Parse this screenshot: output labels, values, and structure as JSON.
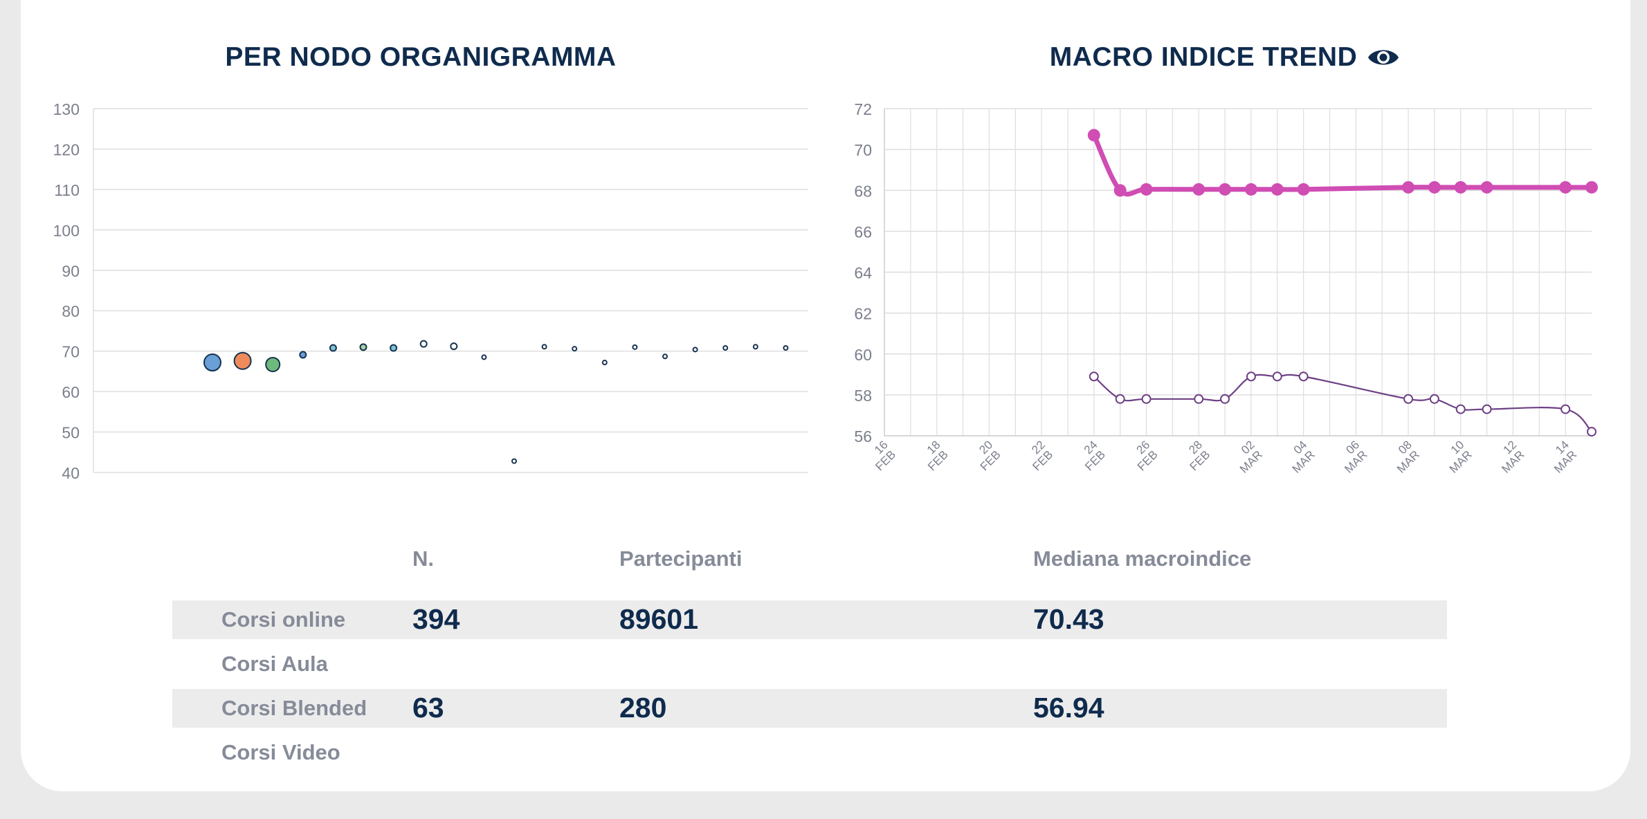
{
  "colors": {
    "title": "#0f2b4d",
    "axis_text": "#7b7f8c",
    "grid": "#dedede",
    "pink": "#d04db3",
    "purple": "#6d3f84"
  },
  "chart_data": [
    {
      "type": "scatter",
      "title": "PER NODO ORGANIGRAMMA",
      "title_icon": "eye-icon",
      "ylim": [
        40,
        130
      ],
      "yticks": [
        40,
        50,
        60,
        70,
        80,
        90,
        100,
        110,
        120,
        130
      ],
      "x": [
        1,
        2,
        3,
        4,
        5,
        6,
        7,
        8,
        9,
        10,
        11,
        12,
        13,
        14,
        15,
        16,
        17,
        18,
        19,
        20
      ],
      "points": [
        {
          "x": 1,
          "y": 67.2,
          "size": 5,
          "color": "#6a9fd8"
        },
        {
          "x": 2,
          "y": 67.6,
          "size": 5,
          "color": "#ef8a5b"
        },
        {
          "x": 3,
          "y": 66.7,
          "size": 4,
          "color": "#6dbb7c"
        },
        {
          "x": 4,
          "y": 69.1,
          "size": 2,
          "color": "#6a9fd8"
        },
        {
          "x": 5,
          "y": 70.8,
          "size": 2,
          "color": "#7fc3d6"
        },
        {
          "x": 6,
          "y": 71.0,
          "size": 2,
          "color": "#a8d3a0"
        },
        {
          "x": 7,
          "y": 70.8,
          "size": 2,
          "color": "#7fc3d6"
        },
        {
          "x": 8,
          "y": 71.8,
          "size": 2,
          "color": "#ffffff"
        },
        {
          "x": 9,
          "y": 71.2,
          "size": 2,
          "color": "#ffffff"
        },
        {
          "x": 10,
          "y": 68.5,
          "size": 1,
          "color": "#ffffff"
        },
        {
          "x": 11,
          "y": 42.8,
          "size": 1,
          "color": "#ffffff"
        },
        {
          "x": 12,
          "y": 71.1,
          "size": 1,
          "color": "#ffffff"
        },
        {
          "x": 13,
          "y": 70.6,
          "size": 1,
          "color": "#ffffff"
        },
        {
          "x": 14,
          "y": 67.2,
          "size": 1,
          "color": "#ffffff"
        },
        {
          "x": 15,
          "y": 71.0,
          "size": 1,
          "color": "#ffffff"
        },
        {
          "x": 16,
          "y": 68.7,
          "size": 1,
          "color": "#ffffff"
        },
        {
          "x": 17,
          "y": 70.4,
          "size": 1,
          "color": "#ffffff"
        },
        {
          "x": 18,
          "y": 70.8,
          "size": 1,
          "color": "#ffffff"
        },
        {
          "x": 19,
          "y": 71.1,
          "size": 1,
          "color": "#ffffff"
        },
        {
          "x": 20,
          "y": 70.8,
          "size": 1,
          "color": "#ffffff"
        }
      ]
    },
    {
      "type": "line",
      "title": "MACRO INDICE TREND",
      "title_icon": "eye-icon",
      "ylim": [
        56,
        72
      ],
      "yticks": [
        56,
        58,
        60,
        62,
        64,
        66,
        68,
        70,
        72
      ],
      "xlim": [
        16,
        43
      ],
      "x_ticks": [
        {
          "x": 16,
          "day": "16",
          "month": "FEB"
        },
        {
          "x": 18,
          "day": "18",
          "month": "FEB"
        },
        {
          "x": 20,
          "day": "20",
          "month": "FEB"
        },
        {
          "x": 22,
          "day": "22",
          "month": "FEB"
        },
        {
          "x": 24,
          "day": "24",
          "month": "FEB"
        },
        {
          "x": 26,
          "day": "26",
          "month": "FEB"
        },
        {
          "x": 28,
          "day": "28",
          "month": "FEB"
        },
        {
          "x": 30,
          "day": "02",
          "month": "MAR"
        },
        {
          "x": 32,
          "day": "04",
          "month": "MAR"
        },
        {
          "x": 34,
          "day": "06",
          "month": "MAR"
        },
        {
          "x": 36,
          "day": "08",
          "month": "MAR"
        },
        {
          "x": 38,
          "day": "10",
          "month": "MAR"
        },
        {
          "x": 40,
          "day": "12",
          "month": "MAR"
        },
        {
          "x": 42,
          "day": "14",
          "month": "MAR"
        }
      ],
      "series": [
        {
          "name": "pink",
          "color": "#d04db3",
          "x": [
            24,
            25,
            26,
            28,
            29,
            30,
            31,
            32,
            36,
            37,
            38,
            39,
            42,
            43
          ],
          "values": [
            70.7,
            68.0,
            68.05,
            68.05,
            68.05,
            68.05,
            68.05,
            68.05,
            68.15,
            68.15,
            68.15,
            68.15,
            68.15,
            68.15
          ]
        },
        {
          "name": "purple",
          "color": "#6d3f84",
          "x": [
            24,
            25,
            26,
            28,
            29,
            30,
            31,
            32,
            36,
            37,
            38,
            39,
            42,
            43
          ],
          "values": [
            58.9,
            57.8,
            57.8,
            57.8,
            57.8,
            58.9,
            58.9,
            58.9,
            57.8,
            57.8,
            57.3,
            57.3,
            57.3,
            56.2
          ]
        }
      ]
    }
  ],
  "table": {
    "headers": {
      "n": "N.",
      "participants": "Partecipanti",
      "median": "Mediana macroindice"
    },
    "rows": [
      {
        "label": "Corsi online",
        "n": "394",
        "participants": "89601",
        "median": "70.43"
      },
      {
        "label": "Corsi Aula",
        "n": "",
        "participants": "",
        "median": ""
      },
      {
        "label": "Corsi Blended",
        "n": "63",
        "participants": "280",
        "median": "56.94"
      },
      {
        "label": "Corsi Video",
        "n": "",
        "participants": "",
        "median": ""
      }
    ]
  }
}
